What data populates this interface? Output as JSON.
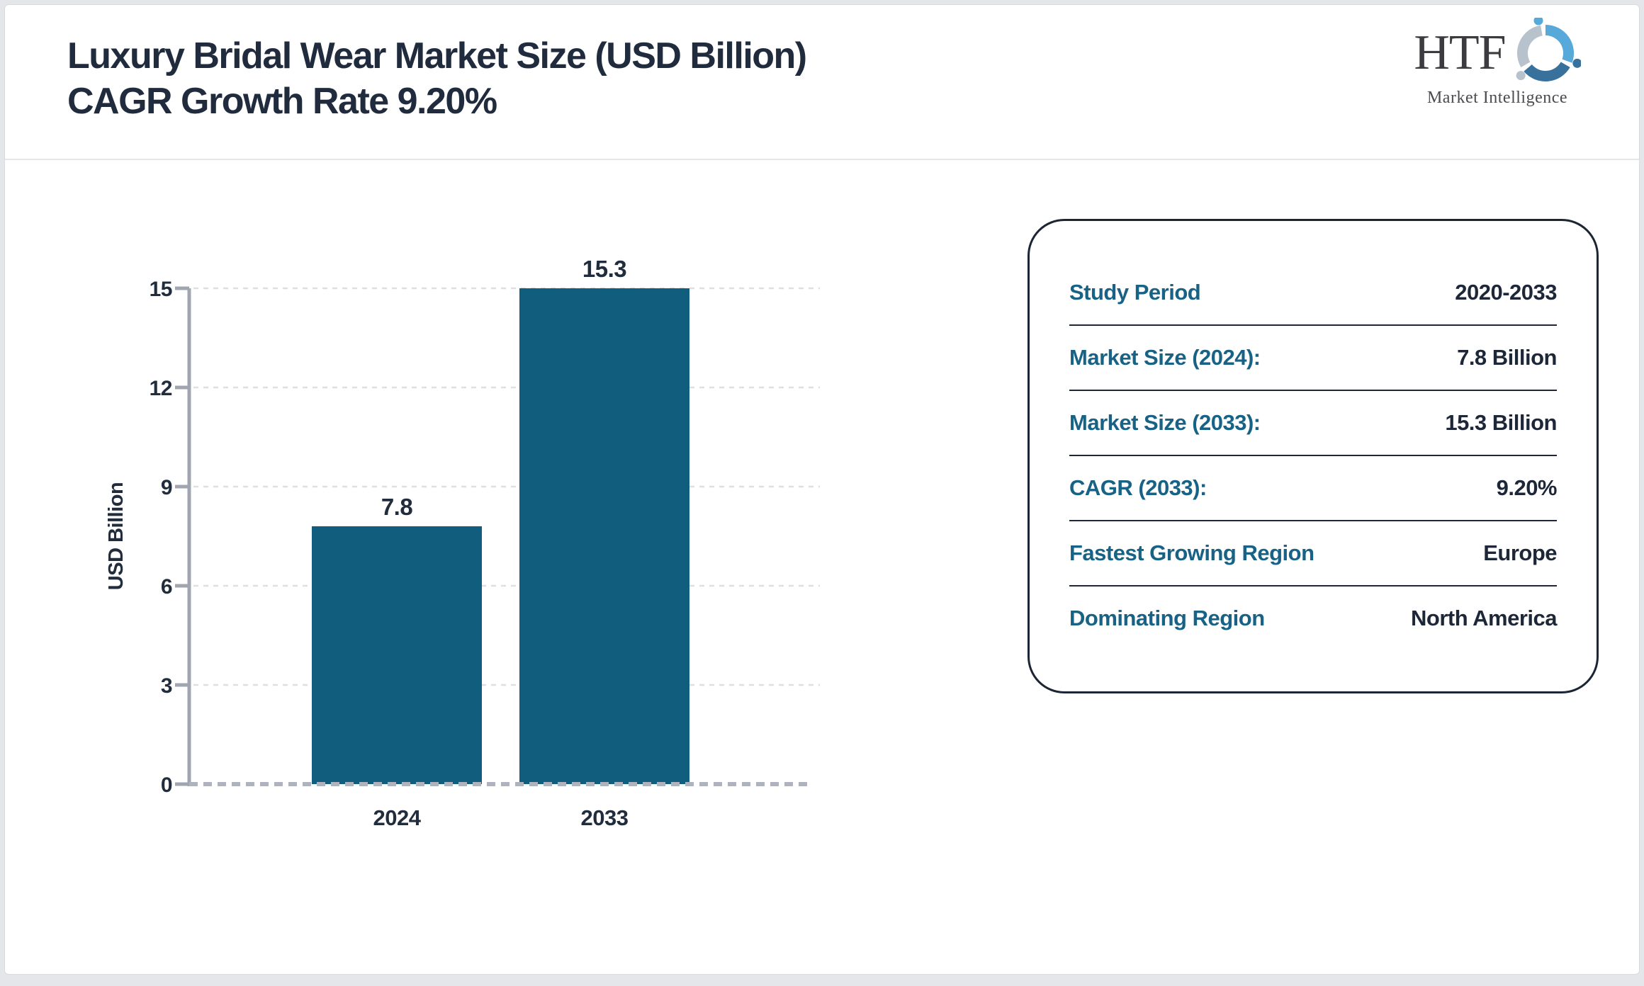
{
  "header": {
    "title_line1": "Luxury Bridal Wear Market Size (USD Billion)",
    "title_line2": "CAGR Growth Rate 9.20%"
  },
  "logo": {
    "name": "HTF",
    "tagline": "Market Intelligence",
    "swirl_colors": [
      "#57a9da",
      "#38719c",
      "#b7c2cc"
    ]
  },
  "chart_data": {
    "type": "bar",
    "categories": [
      "2024",
      "2033"
    ],
    "values": [
      7.8,
      15.3
    ],
    "value_labels": [
      "7.8",
      "15.3"
    ],
    "title": "",
    "xlabel": "",
    "ylabel": "USD Billion",
    "ylim": [
      0,
      15
    ],
    "yticks": [
      0,
      3,
      6,
      9,
      12,
      15
    ],
    "grid": "horizontal-dashed",
    "legend": "none",
    "bar_color": "#115d7e"
  },
  "info_panel": {
    "rows": [
      {
        "label": "Study Period",
        "value": "2020-2033"
      },
      {
        "label": "Market Size (2024):",
        "value": "7.8 Billion"
      },
      {
        "label": "Market Size (2033):",
        "value": "15.3 Billion"
      },
      {
        "label": "CAGR (2033):",
        "value": "9.20%"
      },
      {
        "label": "Fastest Growing Region",
        "value": "Europe"
      },
      {
        "label": "Dominating Region",
        "value": "North America"
      }
    ]
  },
  "colors": {
    "title_text": "#202c3d",
    "axis": "#a0a6b0",
    "gridline": "#dcdfe3",
    "baseline": "#aeb3bd",
    "tick_text": "#212d3d",
    "panel_label": "#176285",
    "panel_value": "#1d2738",
    "panel_border": "#1c2534",
    "bar": "#115d7e"
  }
}
